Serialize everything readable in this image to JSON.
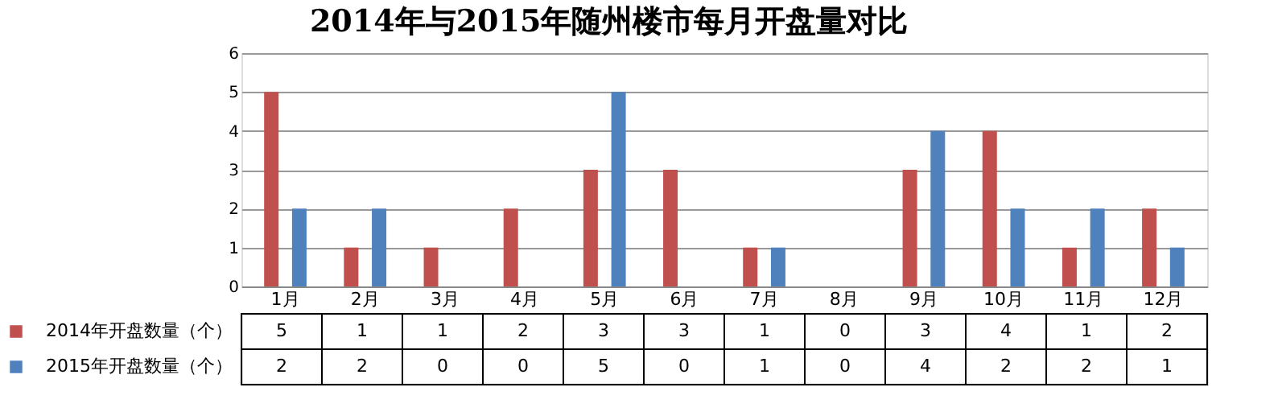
{
  "chart_data": {
    "type": "bar",
    "title": "2014年与2015年随州楼市每月开盘量对比",
    "categories": [
      "1月",
      "2月",
      "3月",
      "4月",
      "5月",
      "6月",
      "7月",
      "8月",
      "9月",
      "10月",
      "11月",
      "12月"
    ],
    "series": [
      {
        "name": "2014年开盘数量（个）",
        "color": "#c0504d",
        "values": [
          5,
          1,
          1,
          2,
          3,
          3,
          1,
          0,
          3,
          4,
          1,
          2
        ]
      },
      {
        "name": "2015年开盘数量（个）",
        "color": "#4f81bd",
        "values": [
          2,
          2,
          0,
          0,
          5,
          0,
          1,
          0,
          4,
          2,
          2,
          1
        ]
      }
    ],
    "ylim": [
      0,
      6
    ],
    "yticks": [
      0,
      1,
      2,
      3,
      4,
      5,
      6
    ],
    "grid": "y",
    "legend": "bottom left",
    "data_labels": true
  }
}
